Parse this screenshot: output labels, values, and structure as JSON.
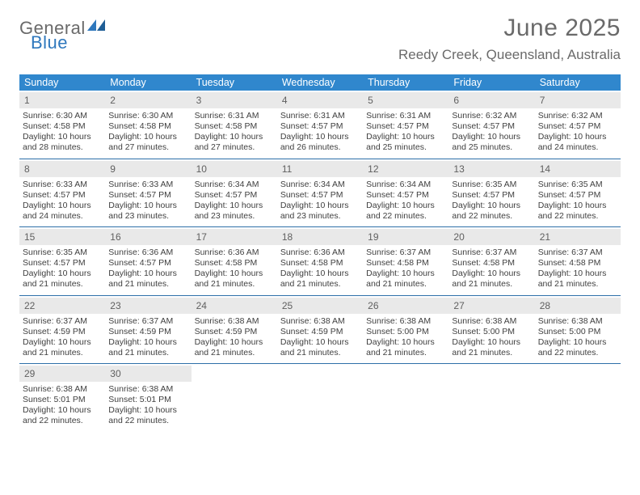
{
  "brand": {
    "word1": "General",
    "word2": "Blue",
    "text_color": "#6a6a6a",
    "accent_color": "#2f78bd"
  },
  "title": "June 2025",
  "location": "Reedy Creek, Queensland, Australia",
  "colors": {
    "header_band": "#3087cd",
    "row_divider": "#2d6fa8",
    "daynum_band": "#e9e9e9",
    "daynum_text": "#606060",
    "body_text": "#404040",
    "page_bg": "#ffffff"
  },
  "weekday_headers": [
    "Sunday",
    "Monday",
    "Tuesday",
    "Wednesday",
    "Thursday",
    "Friday",
    "Saturday"
  ],
  "weeks": [
    [
      {
        "day": 1,
        "sunrise": "6:30 AM",
        "sunset": "4:58 PM",
        "daylight": "10 hours and 28 minutes."
      },
      {
        "day": 2,
        "sunrise": "6:30 AM",
        "sunset": "4:58 PM",
        "daylight": "10 hours and 27 minutes."
      },
      {
        "day": 3,
        "sunrise": "6:31 AM",
        "sunset": "4:58 PM",
        "daylight": "10 hours and 27 minutes."
      },
      {
        "day": 4,
        "sunrise": "6:31 AM",
        "sunset": "4:57 PM",
        "daylight": "10 hours and 26 minutes."
      },
      {
        "day": 5,
        "sunrise": "6:31 AM",
        "sunset": "4:57 PM",
        "daylight": "10 hours and 25 minutes."
      },
      {
        "day": 6,
        "sunrise": "6:32 AM",
        "sunset": "4:57 PM",
        "daylight": "10 hours and 25 minutes."
      },
      {
        "day": 7,
        "sunrise": "6:32 AM",
        "sunset": "4:57 PM",
        "daylight": "10 hours and 24 minutes."
      }
    ],
    [
      {
        "day": 8,
        "sunrise": "6:33 AM",
        "sunset": "4:57 PM",
        "daylight": "10 hours and 24 minutes."
      },
      {
        "day": 9,
        "sunrise": "6:33 AM",
        "sunset": "4:57 PM",
        "daylight": "10 hours and 23 minutes."
      },
      {
        "day": 10,
        "sunrise": "6:34 AM",
        "sunset": "4:57 PM",
        "daylight": "10 hours and 23 minutes."
      },
      {
        "day": 11,
        "sunrise": "6:34 AM",
        "sunset": "4:57 PM",
        "daylight": "10 hours and 23 minutes."
      },
      {
        "day": 12,
        "sunrise": "6:34 AM",
        "sunset": "4:57 PM",
        "daylight": "10 hours and 22 minutes."
      },
      {
        "day": 13,
        "sunrise": "6:35 AM",
        "sunset": "4:57 PM",
        "daylight": "10 hours and 22 minutes."
      },
      {
        "day": 14,
        "sunrise": "6:35 AM",
        "sunset": "4:57 PM",
        "daylight": "10 hours and 22 minutes."
      }
    ],
    [
      {
        "day": 15,
        "sunrise": "6:35 AM",
        "sunset": "4:57 PM",
        "daylight": "10 hours and 21 minutes."
      },
      {
        "day": 16,
        "sunrise": "6:36 AM",
        "sunset": "4:57 PM",
        "daylight": "10 hours and 21 minutes."
      },
      {
        "day": 17,
        "sunrise": "6:36 AM",
        "sunset": "4:58 PM",
        "daylight": "10 hours and 21 minutes."
      },
      {
        "day": 18,
        "sunrise": "6:36 AM",
        "sunset": "4:58 PM",
        "daylight": "10 hours and 21 minutes."
      },
      {
        "day": 19,
        "sunrise": "6:37 AM",
        "sunset": "4:58 PM",
        "daylight": "10 hours and 21 minutes."
      },
      {
        "day": 20,
        "sunrise": "6:37 AM",
        "sunset": "4:58 PM",
        "daylight": "10 hours and 21 minutes."
      },
      {
        "day": 21,
        "sunrise": "6:37 AM",
        "sunset": "4:58 PM",
        "daylight": "10 hours and 21 minutes."
      }
    ],
    [
      {
        "day": 22,
        "sunrise": "6:37 AM",
        "sunset": "4:59 PM",
        "daylight": "10 hours and 21 minutes."
      },
      {
        "day": 23,
        "sunrise": "6:37 AM",
        "sunset": "4:59 PM",
        "daylight": "10 hours and 21 minutes."
      },
      {
        "day": 24,
        "sunrise": "6:38 AM",
        "sunset": "4:59 PM",
        "daylight": "10 hours and 21 minutes."
      },
      {
        "day": 25,
        "sunrise": "6:38 AM",
        "sunset": "4:59 PM",
        "daylight": "10 hours and 21 minutes."
      },
      {
        "day": 26,
        "sunrise": "6:38 AM",
        "sunset": "5:00 PM",
        "daylight": "10 hours and 21 minutes."
      },
      {
        "day": 27,
        "sunrise": "6:38 AM",
        "sunset": "5:00 PM",
        "daylight": "10 hours and 21 minutes."
      },
      {
        "day": 28,
        "sunrise": "6:38 AM",
        "sunset": "5:00 PM",
        "daylight": "10 hours and 22 minutes."
      }
    ],
    [
      {
        "day": 29,
        "sunrise": "6:38 AM",
        "sunset": "5:01 PM",
        "daylight": "10 hours and 22 minutes."
      },
      {
        "day": 30,
        "sunrise": "6:38 AM",
        "sunset": "5:01 PM",
        "daylight": "10 hours and 22 minutes."
      },
      null,
      null,
      null,
      null,
      null
    ]
  ],
  "labels": {
    "sunrise_prefix": "Sunrise: ",
    "sunset_prefix": "Sunset: ",
    "daylight_prefix": "Daylight: "
  }
}
